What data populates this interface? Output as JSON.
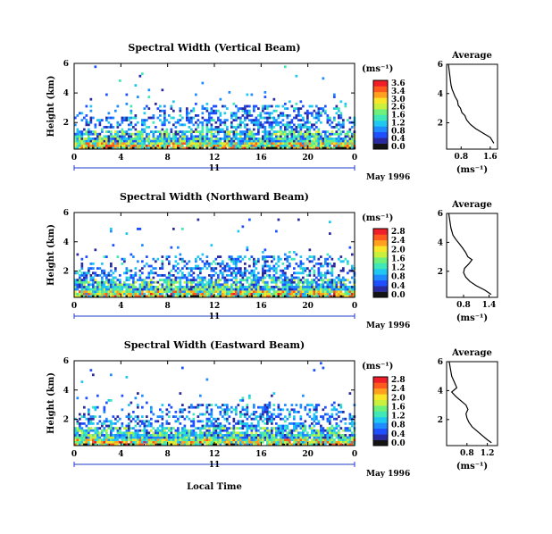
{
  "figure": {
    "x_axis_label": "Local Time",
    "date_label": "May 1996",
    "day_marker": "11",
    "y_axis_label": "Height (km)",
    "colorbar_unit": "(ms⁻¹)",
    "average_title": "Average",
    "average_xlabel": "(ms⁻¹)"
  },
  "colors": {
    "colormap": [
      "#141414",
      "#2a2aa0",
      "#1e50ff",
      "#1e8cff",
      "#1ec8f0",
      "#40e8b8",
      "#6ef07a",
      "#c8f03c",
      "#fae628",
      "#ffa01e",
      "#ff5a1e",
      "#f01e28"
    ],
    "axis": "#000000",
    "marker_line": "#1e3cc8"
  },
  "chart_data": [
    {
      "type": "heatmap",
      "title": "Spectral Width (Vertical Beam)",
      "xlabel": "Local Time",
      "ylabel": "Height (km)",
      "xlim": [
        0,
        24
      ],
      "ylim": [
        0.2,
        6
      ],
      "x_ticks": [
        "0",
        "4",
        "8",
        "12",
        "16",
        "20",
        "0"
      ],
      "y_ticks": [
        "6",
        "4",
        "2"
      ],
      "colorbar_ticks": [
        "3.6",
        "3.4",
        "3.0",
        "2.6",
        "1.6",
        "1.2",
        "0.8",
        "0.4",
        "0.0"
      ],
      "colorbar_range": [
        0,
        3.6
      ],
      "date": "May 1996",
      "day": "11"
    },
    {
      "type": "line",
      "title": "Average",
      "xlabel": "(ms⁻¹)",
      "x_ticks": [
        "0.8",
        "1.6"
      ],
      "y_ticks": [
        "6",
        "4",
        "2"
      ],
      "xlim": [
        0.4,
        1.8
      ],
      "ylim": [
        0.2,
        6
      ],
      "series": [
        {
          "x": [
            0.45,
            0.5,
            0.52,
            0.55,
            0.6,
            0.63,
            0.7,
            0.72,
            0.78,
            0.82,
            0.9,
            0.95,
            1.05,
            1.2,
            1.4,
            1.6,
            1.7
          ],
          "y": [
            6.0,
            5.0,
            4.6,
            4.3,
            4.0,
            3.8,
            3.5,
            3.2,
            3.0,
            2.7,
            2.5,
            2.2,
            1.9,
            1.6,
            1.3,
            1.0,
            0.6
          ]
        }
      ]
    },
    {
      "type": "heatmap",
      "title": "Spectral Width (Northward Beam)",
      "xlabel": "Local Time",
      "ylabel": "Height (km)",
      "xlim": [
        0,
        24
      ],
      "ylim": [
        0.2,
        6
      ],
      "x_ticks": [
        "0",
        "4",
        "8",
        "12",
        "16",
        "20",
        "0"
      ],
      "y_ticks": [
        "6",
        "4",
        "2"
      ],
      "colorbar_ticks": [
        "2.8",
        "2.4",
        "2.0",
        "1.6",
        "1.2",
        "0.8",
        "0.4",
        "0.0"
      ],
      "colorbar_range": [
        0,
        2.8
      ],
      "date": "May 1996",
      "day": "11"
    },
    {
      "type": "line",
      "title": "Average",
      "xlabel": "(ms⁻¹)",
      "x_ticks": [
        "0.8",
        "1.4"
      ],
      "y_ticks": [
        "6",
        "4",
        "2"
      ],
      "xlim": [
        0.4,
        1.6
      ],
      "ylim": [
        0.2,
        6
      ],
      "series": [
        {
          "x": [
            0.45,
            0.5,
            0.55,
            0.62,
            0.7,
            0.78,
            0.85,
            0.9,
            1.0,
            0.92,
            0.82,
            0.8,
            0.85,
            0.95,
            1.1,
            1.3,
            1.45
          ],
          "y": [
            6.0,
            5.0,
            4.5,
            4.2,
            3.9,
            3.6,
            3.3,
            3.0,
            2.8,
            2.5,
            2.2,
            1.9,
            1.6,
            1.3,
            1.0,
            0.7,
            0.4
          ]
        }
      ]
    },
    {
      "type": "heatmap",
      "title": "Spectral Width (Eastward Beam)",
      "xlabel": "Local Time",
      "ylabel": "Height (km)",
      "xlim": [
        0,
        24
      ],
      "ylim": [
        0.2,
        6
      ],
      "x_ticks": [
        "0",
        "4",
        "8",
        "12",
        "16",
        "20",
        "0"
      ],
      "y_ticks": [
        "6",
        "4",
        "2"
      ],
      "colorbar_ticks": [
        "2.8",
        "2.4",
        "2.0",
        "1.6",
        "1.2",
        "0.8",
        "0.4",
        "0.0"
      ],
      "colorbar_range": [
        0,
        2.8
      ],
      "date": "May 1996",
      "day": "11"
    },
    {
      "type": "line",
      "title": "Average",
      "xlabel": "(ms⁻¹)",
      "x_ticks": [
        "0.8",
        "1.2"
      ],
      "y_ticks": [
        "6",
        "4",
        "2"
      ],
      "xlim": [
        0.4,
        1.4
      ],
      "ylim": [
        0.2,
        6
      ],
      "series": [
        {
          "x": [
            0.45,
            0.5,
            0.55,
            0.6,
            0.5,
            0.58,
            0.68,
            0.78,
            0.82,
            0.78,
            0.8,
            0.84,
            0.9,
            1.0,
            1.1,
            1.2,
            1.28
          ],
          "y": [
            6.0,
            5.0,
            4.6,
            4.2,
            3.9,
            3.6,
            3.3,
            3.0,
            2.7,
            2.4,
            2.1,
            1.8,
            1.5,
            1.2,
            0.9,
            0.6,
            0.4
          ]
        }
      ]
    }
  ]
}
